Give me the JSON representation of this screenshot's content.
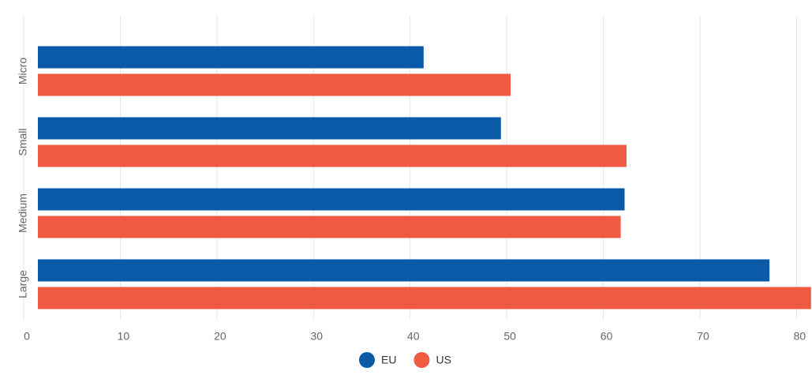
{
  "chart_data": {
    "type": "hbar",
    "categories": [
      "Micro",
      "Small",
      "Medium",
      "Large"
    ],
    "series": [
      {
        "name": "EU",
        "color": "#0b5aa8",
        "values": [
          41.4,
          49.4,
          62.2,
          77.2
        ]
      },
      {
        "name": "US",
        "color": "#f05a43",
        "values": [
          50.4,
          62.4,
          61.8,
          81.5
        ]
      }
    ],
    "xlim": [
      0,
      81.6
    ],
    "xticks": [
      0,
      10,
      20,
      30,
      40,
      50,
      60,
      70,
      80
    ],
    "grid": true,
    "legend": "bottom"
  }
}
